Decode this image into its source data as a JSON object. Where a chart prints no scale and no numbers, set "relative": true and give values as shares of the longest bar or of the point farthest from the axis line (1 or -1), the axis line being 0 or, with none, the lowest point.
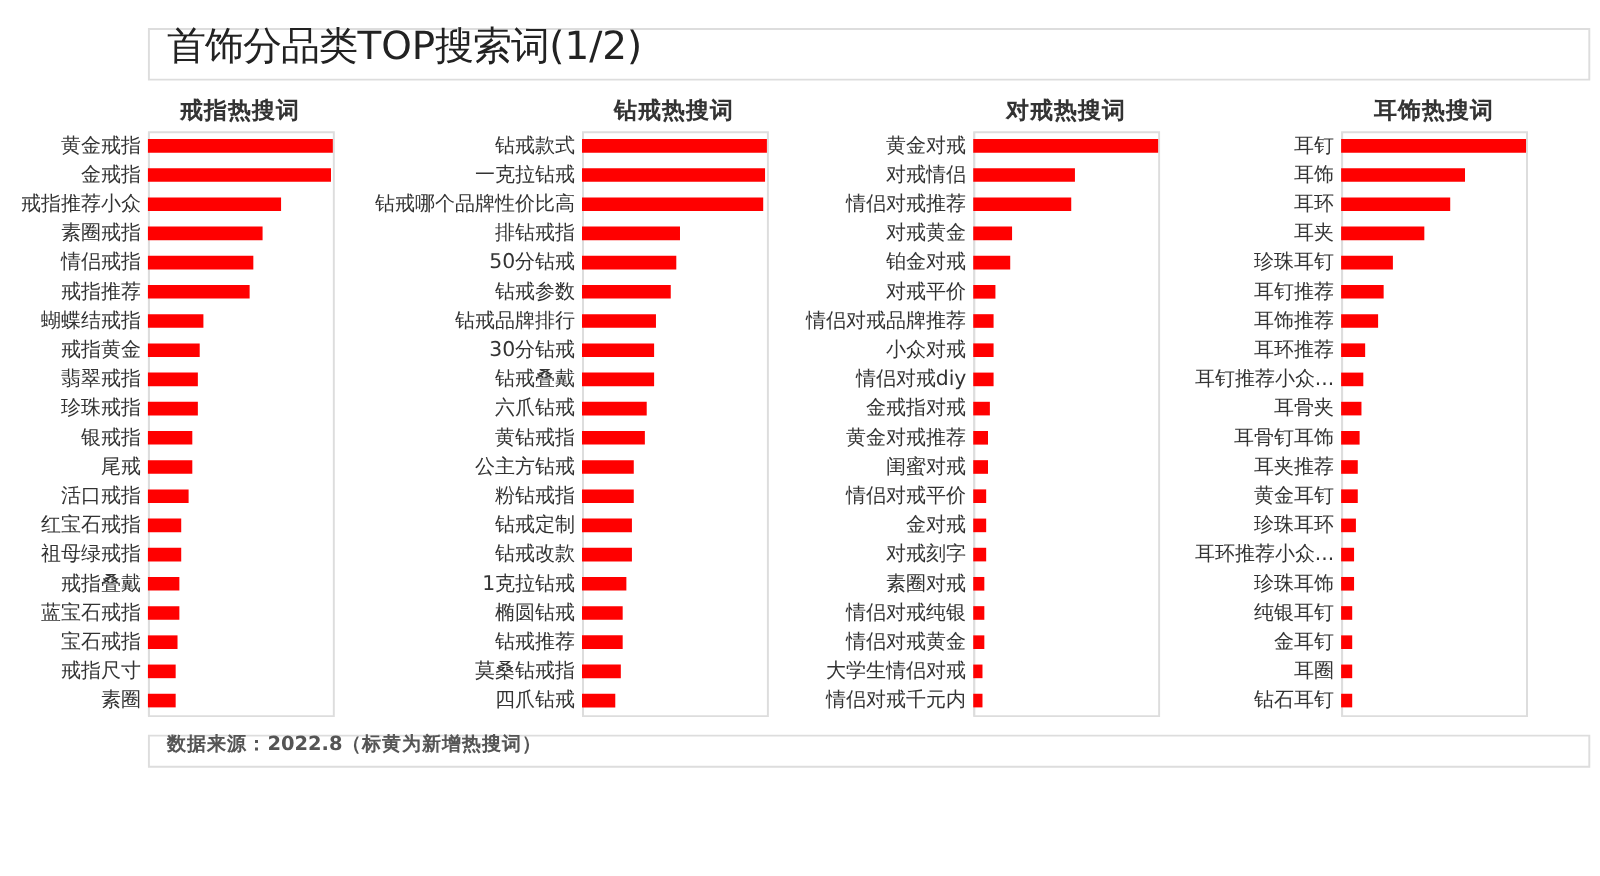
{
  "chart_data": [
    {
      "type": "other",
      "title": "首饰分品类TOP搜索词(1/2)"
    },
    {
      "type": "bar",
      "orientation": "horizontal",
      "relative": true,
      "title": "戒指热搜词",
      "categories": [
        "黄金戒指",
        "金戒指",
        "戒指推荐小众",
        "素圈戒指",
        "情侣戒指",
        "戒指推荐",
        "蝴蝶结戒指",
        "戒指黄金",
        "翡翠戒指",
        "珍珠戒指",
        "银戒指",
        "尾戒",
        "活口戒指",
        "红宝石戒指",
        "祖母绿戒指",
        "戒指叠戴",
        "蓝宝石戒指",
        "宝石戒指",
        "戒指尺寸",
        "素圈"
      ],
      "series": [
        {
          "color": "#ff0000",
          "values": [
            1,
            0.99,
            0.72,
            0.62,
            0.57,
            0.55,
            0.3,
            0.28,
            0.27,
            0.27,
            0.24,
            0.24,
            0.22,
            0.18,
            0.18,
            0.17,
            0.17,
            0.16,
            0.15,
            0.15
          ]
        }
      ]
    },
    {
      "type": "bar",
      "orientation": "horizontal",
      "relative": true,
      "title": "钻戒热搜词",
      "categories": [
        "钻戒款式",
        "一克拉钻戒",
        "钻戒哪个品牌性价比高",
        "排钻戒指",
        "50分钻戒",
        "钻戒参数",
        "钻戒品牌排行",
        "30分钻戒",
        "钻戒叠戴",
        "六爪钻戒",
        "黄钻戒指",
        "公主方钻戒",
        "粉钻戒指",
        "钻戒定制",
        "钻戒改款",
        "1克拉钻戒",
        "椭圆钻戒",
        "钻戒推荐",
        "莫桑钻戒指",
        "四爪钻戒"
      ],
      "series": [
        {
          "color": "#ff0000",
          "values": [
            1,
            0.99,
            0.98,
            0.53,
            0.51,
            0.48,
            0.4,
            0.39,
            0.39,
            0.35,
            0.34,
            0.28,
            0.28,
            0.27,
            0.27,
            0.24,
            0.22,
            0.22,
            0.21,
            0.18
          ]
        }
      ]
    },
    {
      "type": "bar",
      "orientation": "horizontal",
      "relative": true,
      "title": "对戒热搜词",
      "categories": [
        "黄金对戒",
        "对戒情侣",
        "情侣对戒推荐",
        "对戒黄金",
        "铂金对戒",
        "对戒平价",
        "情侣对戒品牌推荐",
        "小众对戒",
        "情侣对戒diy",
        "金戒指对戒",
        "黄金对戒推荐",
        "闺蜜对戒",
        "情侣对戒平价",
        "金对戒",
        "对戒刻字",
        "素圈对戒",
        "情侣对戒纯银",
        "情侣对戒黄金",
        "大学生情侣对戒",
        "情侣对戒千元内"
      ],
      "series": [
        {
          "color": "#ff0000",
          "values": [
            1,
            0.55,
            0.53,
            0.21,
            0.2,
            0.12,
            0.11,
            0.11,
            0.11,
            0.09,
            0.08,
            0.08,
            0.07,
            0.07,
            0.07,
            0.06,
            0.06,
            0.06,
            0.05,
            0.05
          ]
        }
      ]
    },
    {
      "type": "bar",
      "orientation": "horizontal",
      "relative": true,
      "title": "耳饰热搜词",
      "categories": [
        "耳钉",
        "耳饰",
        "耳环",
        "耳夹",
        "珍珠耳钉",
        "耳钉推荐",
        "耳饰推荐",
        "耳环推荐",
        "耳钉推荐小众...",
        "耳骨夹",
        "耳骨钉耳饰",
        "耳夹推荐",
        "黄金耳钉",
        "珍珠耳环",
        "耳环推荐小众...",
        "珍珠耳饰",
        "纯银耳钉",
        "金耳钉",
        "耳圈",
        "钻石耳钉"
      ],
      "series": [
        {
          "color": "#ff0000",
          "values": [
            1,
            0.67,
            0.59,
            0.45,
            0.28,
            0.23,
            0.2,
            0.13,
            0.12,
            0.11,
            0.1,
            0.09,
            0.09,
            0.08,
            0.07,
            0.07,
            0.06,
            0.06,
            0.06,
            0.06
          ]
        }
      ]
    },
    {
      "type": "other",
      "annotations": [
        "数据来源：2022.8（标黄为新增热搜词）"
      ]
    }
  ]
}
